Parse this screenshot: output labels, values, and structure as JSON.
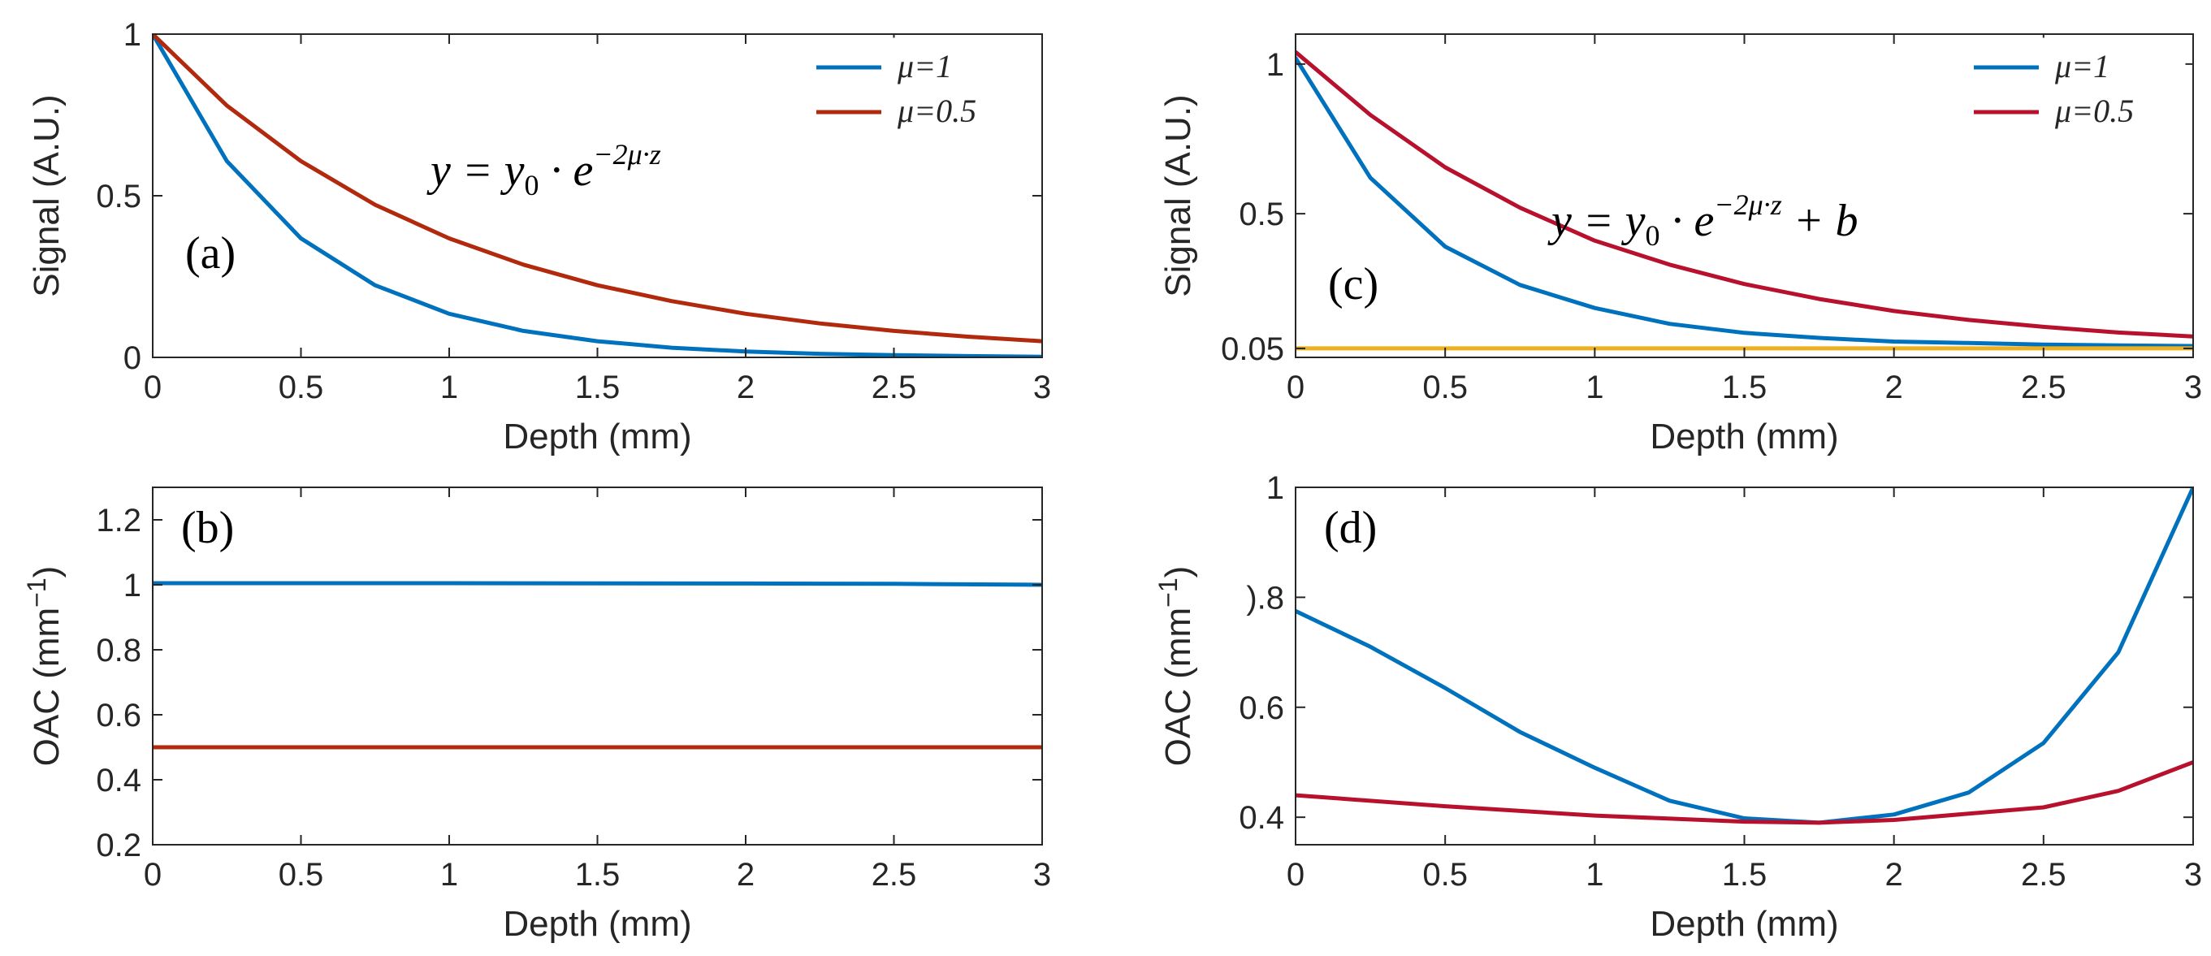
{
  "chart_data": [
    {
      "type": "line",
      "panel_label": "(a)",
      "equation": {
        "lhs": "y",
        "eq": "=",
        "y0": "y",
        "y0_sub": "0",
        "dot": "·",
        "e": "e",
        "exponent": "−2μ·z",
        "tail": ""
      },
      "xlabel": "Depth (mm)",
      "ylabel": "Signal (A.U.)",
      "xlim": [
        0,
        3
      ],
      "ylim": [
        0,
        1
      ],
      "xticks": [
        0,
        0.5,
        1,
        1.5,
        2,
        2.5,
        3
      ],
      "xtick_labels": [
        "0",
        "0.5",
        "1",
        "1.5",
        "2",
        "2.5",
        "3"
      ],
      "yticks": [
        0,
        0.5,
        1
      ],
      "ytick_labels": [
        "0",
        "0.5",
        "1"
      ],
      "legend": {
        "position": "top-right",
        "entries": [
          "μ=1",
          "μ=0.5"
        ]
      },
      "series": [
        {
          "name": "μ=1",
          "color": "#0072BD",
          "x": [
            0,
            0.25,
            0.5,
            0.75,
            1,
            1.25,
            1.5,
            1.75,
            2,
            2.25,
            2.5,
            2.75,
            3
          ],
          "y": [
            1,
            0.607,
            0.368,
            0.223,
            0.135,
            0.082,
            0.05,
            0.03,
            0.018,
            0.011,
            0.007,
            0.004,
            0.002
          ]
        },
        {
          "name": "μ=0.5",
          "color": "#B22A0E",
          "x": [
            0,
            0.25,
            0.5,
            0.75,
            1,
            1.25,
            1.5,
            1.75,
            2,
            2.25,
            2.5,
            2.75,
            3
          ],
          "y": [
            1,
            0.779,
            0.607,
            0.472,
            0.368,
            0.287,
            0.223,
            0.174,
            0.135,
            0.105,
            0.082,
            0.064,
            0.05
          ]
        }
      ]
    },
    {
      "type": "line",
      "panel_label": "(b)",
      "xlabel": "Depth (mm)",
      "ylabel": "OAC  (mm",
      "ylabel_sup": "−1",
      "ylabel_close": ")",
      "xlim": [
        0,
        3
      ],
      "ylim": [
        0.2,
        1.3
      ],
      "xticks": [
        0,
        0.5,
        1,
        1.5,
        2,
        2.5,
        3
      ],
      "xtick_labels": [
        "0",
        "0.5",
        "1",
        "1.5",
        "2",
        "2.5",
        "3"
      ],
      "yticks": [
        0.2,
        0.4,
        0.6,
        0.8,
        1,
        1.2
      ],
      "ytick_labels": [
        "0.2",
        "0.4",
        "0.6",
        "0.8",
        "1",
        "1.2"
      ],
      "series": [
        {
          "color": "#0072BD",
          "x": [
            0,
            1,
            2,
            2.5,
            3
          ],
          "y": [
            1.005,
            1.005,
            1.004,
            1.003,
            1.0
          ]
        },
        {
          "color": "#B22A0E",
          "x": [
            0,
            1,
            2,
            3
          ],
          "y": [
            0.5,
            0.5,
            0.5,
            0.5
          ]
        }
      ]
    },
    {
      "type": "line",
      "panel_label": "(c)",
      "equation": {
        "lhs": "y",
        "eq": "=",
        "y0": "y",
        "y0_sub": "0",
        "dot": "·",
        "e": "e",
        "exponent": "−2μ·z",
        "tail": "+ b"
      },
      "xlabel": "Depth (mm)",
      "ylabel": "Signal (A.U.)",
      "xlim": [
        0,
        3
      ],
      "ylim": [
        0.02,
        1.1
      ],
      "xticks": [
        0,
        0.5,
        1,
        1.5,
        2,
        2.5,
        3
      ],
      "xtick_labels": [
        "0",
        "0.5",
        "1",
        "1.5",
        "2",
        "2.5",
        "3"
      ],
      "yticks": [
        0.05,
        0.5,
        1
      ],
      "ytick_labels": [
        "0.05",
        "0.5",
        "1"
      ],
      "legend": {
        "position": "top-right",
        "entries": [
          "μ=1",
          "μ=0.5"
        ]
      },
      "series": [
        {
          "name": "μ=1",
          "color": "#0072BD",
          "x": [
            0,
            0.25,
            0.5,
            0.75,
            1,
            1.25,
            1.5,
            1.75,
            2,
            2.25,
            2.5,
            2.75,
            3
          ],
          "y": [
            1.02,
            0.62,
            0.39,
            0.262,
            0.185,
            0.132,
            0.102,
            0.085,
            0.073,
            0.068,
            0.063,
            0.06,
            0.058
          ]
        },
        {
          "name": "μ=0.5",
          "color": "#B8112D",
          "x": [
            0,
            0.25,
            0.5,
            0.75,
            1,
            1.25,
            1.5,
            1.75,
            2,
            2.25,
            2.5,
            2.75,
            3
          ],
          "y": [
            1.04,
            0.83,
            0.655,
            0.52,
            0.41,
            0.33,
            0.265,
            0.215,
            0.175,
            0.145,
            0.122,
            0.103,
            0.09
          ]
        },
        {
          "color": "#EDB120",
          "x": [
            0,
            3
          ],
          "y": [
            0.05,
            0.05
          ]
        }
      ]
    },
    {
      "type": "line",
      "panel_label": "(d)",
      "xlabel": "Depth (mm)",
      "ylabel": "OAC  (mm",
      "ylabel_sup": "−1",
      "ylabel_close": ")",
      "xlim": [
        0,
        3
      ],
      "ylim": [
        0.35,
        1
      ],
      "xticks": [
        0,
        0.5,
        1,
        1.5,
        2,
        2.5,
        3
      ],
      "xtick_labels": [
        "0",
        "0.5",
        "1",
        "1.5",
        "2",
        "2.5",
        "3"
      ],
      "yticks": [
        0.4,
        0.6,
        0.8,
        1
      ],
      "ytick_labels": [
        "0.4",
        "0.6",
        ").8",
        "1"
      ],
      "series": [
        {
          "color": "#0072BD",
          "x": [
            0,
            0.25,
            0.5,
            0.75,
            1,
            1.25,
            1.5,
            1.75,
            2,
            2.25,
            2.5,
            2.75,
            3
          ],
          "y": [
            0.775,
            0.71,
            0.635,
            0.555,
            0.49,
            0.43,
            0.398,
            0.39,
            0.405,
            0.445,
            0.535,
            0.7,
            1.0
          ]
        },
        {
          "color": "#B8112D",
          "x": [
            0,
            0.5,
            1,
            1.5,
            1.75,
            2,
            2.5,
            2.75,
            3
          ],
          "y": [
            0.44,
            0.42,
            0.403,
            0.392,
            0.39,
            0.395,
            0.418,
            0.448,
            0.5
          ]
        }
      ]
    }
  ]
}
